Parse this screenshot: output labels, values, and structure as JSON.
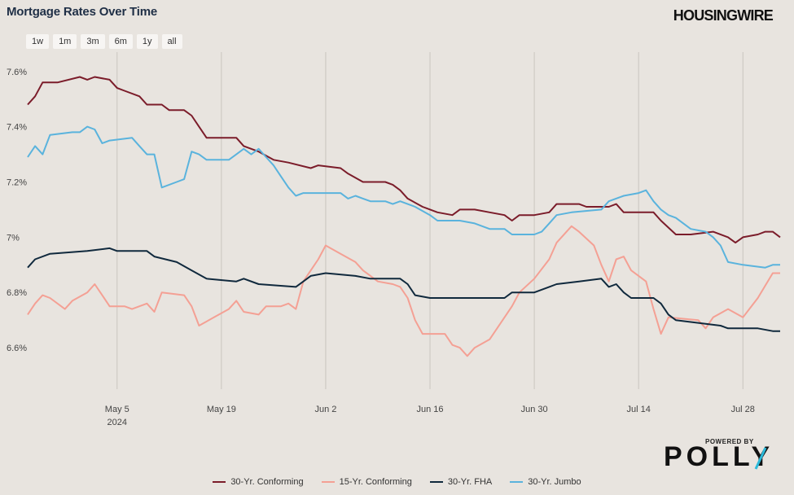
{
  "header": {
    "title": "Mortgage Rates Over Time",
    "brand": "HOUSINGWIRE"
  },
  "range_buttons": [
    "1w",
    "1m",
    "3m",
    "6m",
    "1y",
    "all"
  ],
  "footer": {
    "powered_by": "POWERED BY",
    "logo": "POLLY"
  },
  "colors": {
    "background": "#e8e4df",
    "grid": "#c9c5bf",
    "series": [
      "#7b1c2a",
      "#f4a094",
      "#10293d",
      "#5ab3dd"
    ],
    "polly_accent": "#2bb9d9"
  },
  "chart_data": {
    "type": "line",
    "title": "Mortgage Rates Over Time",
    "xlabel": "",
    "ylabel": "",
    "x_range": [
      "2024-04-23",
      "2024-08-02"
    ],
    "ylim": [
      6.45,
      7.67
    ],
    "y_ticks": [
      6.6,
      6.8,
      7.0,
      7.2,
      7.4,
      7.6
    ],
    "y_tick_labels": [
      "6.6%",
      "6.8%",
      "7%",
      "7.2%",
      "7.4%",
      "7.6%"
    ],
    "x_ticks": [
      {
        "date": "2024-05-05",
        "label": "May 5",
        "sublabel": "2024"
      },
      {
        "date": "2024-05-19",
        "label": "May 19",
        "sublabel": ""
      },
      {
        "date": "2024-06-02",
        "label": "Jun 2",
        "sublabel": ""
      },
      {
        "date": "2024-06-16",
        "label": "Jun 16",
        "sublabel": ""
      },
      {
        "date": "2024-06-30",
        "label": "Jun 30",
        "sublabel": ""
      },
      {
        "date": "2024-07-14",
        "label": "Jul 14",
        "sublabel": ""
      },
      {
        "date": "2024-07-28",
        "label": "Jul 28",
        "sublabel": ""
      }
    ],
    "grid": "vertical",
    "legend_position": "bottom",
    "series": [
      {
        "name": "30-Yr. Conforming",
        "color": "#7b1c2a",
        "points": [
          [
            "2024-04-23",
            7.48
          ],
          [
            "2024-04-24",
            7.51
          ],
          [
            "2024-04-25",
            7.56
          ],
          [
            "2024-04-27",
            7.56
          ],
          [
            "2024-04-30",
            7.58
          ],
          [
            "2024-05-01",
            7.57
          ],
          [
            "2024-05-02",
            7.58
          ],
          [
            "2024-05-04",
            7.57
          ],
          [
            "2024-05-05",
            7.54
          ],
          [
            "2024-05-06",
            7.53
          ],
          [
            "2024-05-08",
            7.51
          ],
          [
            "2024-05-09",
            7.48
          ],
          [
            "2024-05-11",
            7.48
          ],
          [
            "2024-05-12",
            7.46
          ],
          [
            "2024-05-14",
            7.46
          ],
          [
            "2024-05-15",
            7.44
          ],
          [
            "2024-05-16",
            7.4
          ],
          [
            "2024-05-17",
            7.36
          ],
          [
            "2024-05-21",
            7.36
          ],
          [
            "2024-05-22",
            7.33
          ],
          [
            "2024-05-24",
            7.31
          ],
          [
            "2024-05-26",
            7.28
          ],
          [
            "2024-05-28",
            7.27
          ],
          [
            "2024-05-31",
            7.25
          ],
          [
            "2024-06-01",
            7.26
          ],
          [
            "2024-06-04",
            7.25
          ],
          [
            "2024-06-05",
            7.23
          ],
          [
            "2024-06-07",
            7.2
          ],
          [
            "2024-06-10",
            7.2
          ],
          [
            "2024-06-11",
            7.19
          ],
          [
            "2024-06-12",
            7.17
          ],
          [
            "2024-06-13",
            7.14
          ],
          [
            "2024-06-15",
            7.11
          ],
          [
            "2024-06-17",
            7.09
          ],
          [
            "2024-06-19",
            7.08
          ],
          [
            "2024-06-20",
            7.1
          ],
          [
            "2024-06-22",
            7.1
          ],
          [
            "2024-06-24",
            7.09
          ],
          [
            "2024-06-26",
            7.08
          ],
          [
            "2024-06-27",
            7.06
          ],
          [
            "2024-06-28",
            7.08
          ],
          [
            "2024-06-30",
            7.08
          ],
          [
            "2024-07-02",
            7.09
          ],
          [
            "2024-07-03",
            7.12
          ],
          [
            "2024-07-06",
            7.12
          ],
          [
            "2024-07-07",
            7.11
          ],
          [
            "2024-07-10",
            7.11
          ],
          [
            "2024-07-11",
            7.12
          ],
          [
            "2024-07-12",
            7.09
          ],
          [
            "2024-07-16",
            7.09
          ],
          [
            "2024-07-17",
            7.06
          ],
          [
            "2024-07-19",
            7.01
          ],
          [
            "2024-07-21",
            7.01
          ],
          [
            "2024-07-24",
            7.02
          ],
          [
            "2024-07-26",
            7.0
          ],
          [
            "2024-07-27",
            6.98
          ],
          [
            "2024-07-28",
            7.0
          ],
          [
            "2024-07-30",
            7.01
          ],
          [
            "2024-07-31",
            7.02
          ],
          [
            "2024-08-01",
            7.02
          ],
          [
            "2024-08-02",
            7.0
          ]
        ]
      },
      {
        "name": "15-Yr. Conforming",
        "color": "#f4a094",
        "points": [
          [
            "2024-04-23",
            6.72
          ],
          [
            "2024-04-24",
            6.76
          ],
          [
            "2024-04-25",
            6.79
          ],
          [
            "2024-04-26",
            6.78
          ],
          [
            "2024-04-28",
            6.74
          ],
          [
            "2024-04-29",
            6.77
          ],
          [
            "2024-05-01",
            6.8
          ],
          [
            "2024-05-02",
            6.83
          ],
          [
            "2024-05-03",
            6.79
          ],
          [
            "2024-05-04",
            6.75
          ],
          [
            "2024-05-06",
            6.75
          ],
          [
            "2024-05-07",
            6.74
          ],
          [
            "2024-05-09",
            6.76
          ],
          [
            "2024-05-10",
            6.73
          ],
          [
            "2024-05-11",
            6.8
          ],
          [
            "2024-05-14",
            6.79
          ],
          [
            "2024-05-15",
            6.75
          ],
          [
            "2024-05-16",
            6.68
          ],
          [
            "2024-05-18",
            6.71
          ],
          [
            "2024-05-20",
            6.74
          ],
          [
            "2024-05-21",
            6.77
          ],
          [
            "2024-05-22",
            6.73
          ],
          [
            "2024-05-24",
            6.72
          ],
          [
            "2024-05-25",
            6.75
          ],
          [
            "2024-05-27",
            6.75
          ],
          [
            "2024-05-28",
            6.76
          ],
          [
            "2024-05-29",
            6.74
          ],
          [
            "2024-05-30",
            6.84
          ],
          [
            "2024-06-01",
            6.92
          ],
          [
            "2024-06-02",
            6.97
          ],
          [
            "2024-06-04",
            6.94
          ],
          [
            "2024-06-06",
            6.91
          ],
          [
            "2024-06-07",
            6.88
          ],
          [
            "2024-06-09",
            6.84
          ],
          [
            "2024-06-11",
            6.83
          ],
          [
            "2024-06-12",
            6.82
          ],
          [
            "2024-06-13",
            6.78
          ],
          [
            "2024-06-14",
            6.7
          ],
          [
            "2024-06-15",
            6.65
          ],
          [
            "2024-06-18",
            6.65
          ],
          [
            "2024-06-19",
            6.61
          ],
          [
            "2024-06-20",
            6.6
          ],
          [
            "2024-06-21",
            6.57
          ],
          [
            "2024-06-22",
            6.6
          ],
          [
            "2024-06-24",
            6.63
          ],
          [
            "2024-06-25",
            6.67
          ],
          [
            "2024-06-26",
            6.71
          ],
          [
            "2024-06-27",
            6.75
          ],
          [
            "2024-06-28",
            6.8
          ],
          [
            "2024-06-30",
            6.85
          ],
          [
            "2024-07-02",
            6.92
          ],
          [
            "2024-07-03",
            6.98
          ],
          [
            "2024-07-05",
            7.04
          ],
          [
            "2024-07-06",
            7.02
          ],
          [
            "2024-07-08",
            6.97
          ],
          [
            "2024-07-09",
            6.9
          ],
          [
            "2024-07-10",
            6.84
          ],
          [
            "2024-07-11",
            6.92
          ],
          [
            "2024-07-12",
            6.93
          ],
          [
            "2024-07-13",
            6.88
          ],
          [
            "2024-07-15",
            6.84
          ],
          [
            "2024-07-16",
            6.74
          ],
          [
            "2024-07-17",
            6.65
          ],
          [
            "2024-07-18",
            6.71
          ],
          [
            "2024-07-22",
            6.7
          ],
          [
            "2024-07-23",
            6.67
          ],
          [
            "2024-07-24",
            6.71
          ],
          [
            "2024-07-26",
            6.74
          ],
          [
            "2024-07-28",
            6.71
          ],
          [
            "2024-07-30",
            6.78
          ],
          [
            "2024-08-01",
            6.87
          ],
          [
            "2024-08-02",
            6.87
          ]
        ]
      },
      {
        "name": "30-Yr. FHA",
        "color": "#10293d",
        "points": [
          [
            "2024-04-23",
            6.89
          ],
          [
            "2024-04-24",
            6.92
          ],
          [
            "2024-04-26",
            6.94
          ],
          [
            "2024-05-01",
            6.95
          ],
          [
            "2024-05-04",
            6.96
          ],
          [
            "2024-05-05",
            6.95
          ],
          [
            "2024-05-09",
            6.95
          ],
          [
            "2024-05-10",
            6.93
          ],
          [
            "2024-05-13",
            6.91
          ],
          [
            "2024-05-15",
            6.88
          ],
          [
            "2024-05-17",
            6.85
          ],
          [
            "2024-05-21",
            6.84
          ],
          [
            "2024-05-22",
            6.85
          ],
          [
            "2024-05-24",
            6.83
          ],
          [
            "2024-05-29",
            6.82
          ],
          [
            "2024-05-30",
            6.84
          ],
          [
            "2024-05-31",
            6.86
          ],
          [
            "2024-06-02",
            6.87
          ],
          [
            "2024-06-06",
            6.86
          ],
          [
            "2024-06-08",
            6.85
          ],
          [
            "2024-06-12",
            6.85
          ],
          [
            "2024-06-13",
            6.83
          ],
          [
            "2024-06-14",
            6.79
          ],
          [
            "2024-06-16",
            6.78
          ],
          [
            "2024-06-26",
            6.78
          ],
          [
            "2024-06-27",
            6.8
          ],
          [
            "2024-06-30",
            6.8
          ],
          [
            "2024-07-02",
            6.82
          ],
          [
            "2024-07-03",
            6.83
          ],
          [
            "2024-07-06",
            6.84
          ],
          [
            "2024-07-09",
            6.85
          ],
          [
            "2024-07-10",
            6.82
          ],
          [
            "2024-07-11",
            6.83
          ],
          [
            "2024-07-12",
            6.8
          ],
          [
            "2024-07-13",
            6.78
          ],
          [
            "2024-07-16",
            6.78
          ],
          [
            "2024-07-17",
            6.76
          ],
          [
            "2024-07-18",
            6.72
          ],
          [
            "2024-07-19",
            6.7
          ],
          [
            "2024-07-22",
            6.69
          ],
          [
            "2024-07-25",
            6.68
          ],
          [
            "2024-07-26",
            6.67
          ],
          [
            "2024-07-27",
            6.67
          ],
          [
            "2024-07-28",
            6.67
          ],
          [
            "2024-07-30",
            6.67
          ],
          [
            "2024-08-01",
            6.66
          ],
          [
            "2024-08-02",
            6.66
          ]
        ]
      },
      {
        "name": "30-Yr. Jumbo",
        "color": "#5ab3dd",
        "points": [
          [
            "2024-04-23",
            7.29
          ],
          [
            "2024-04-24",
            7.33
          ],
          [
            "2024-04-25",
            7.3
          ],
          [
            "2024-04-26",
            7.37
          ],
          [
            "2024-04-29",
            7.38
          ],
          [
            "2024-04-30",
            7.38
          ],
          [
            "2024-05-01",
            7.4
          ],
          [
            "2024-05-02",
            7.39
          ],
          [
            "2024-05-03",
            7.34
          ],
          [
            "2024-05-04",
            7.35
          ],
          [
            "2024-05-07",
            7.36
          ],
          [
            "2024-05-08",
            7.33
          ],
          [
            "2024-05-09",
            7.3
          ],
          [
            "2024-05-10",
            7.3
          ],
          [
            "2024-05-11",
            7.18
          ],
          [
            "2024-05-13",
            7.2
          ],
          [
            "2024-05-14",
            7.21
          ],
          [
            "2024-05-15",
            7.31
          ],
          [
            "2024-05-16",
            7.3
          ],
          [
            "2024-05-17",
            7.28
          ],
          [
            "2024-05-20",
            7.28
          ],
          [
            "2024-05-21",
            7.3
          ],
          [
            "2024-05-22",
            7.32
          ],
          [
            "2024-05-23",
            7.3
          ],
          [
            "2024-05-24",
            7.32
          ],
          [
            "2024-05-25",
            7.29
          ],
          [
            "2024-05-26",
            7.26
          ],
          [
            "2024-05-27",
            7.22
          ],
          [
            "2024-05-28",
            7.18
          ],
          [
            "2024-05-29",
            7.15
          ],
          [
            "2024-05-30",
            7.16
          ],
          [
            "2024-06-04",
            7.16
          ],
          [
            "2024-06-05",
            7.14
          ],
          [
            "2024-06-06",
            7.15
          ],
          [
            "2024-06-07",
            7.14
          ],
          [
            "2024-06-08",
            7.13
          ],
          [
            "2024-06-10",
            7.13
          ],
          [
            "2024-06-11",
            7.12
          ],
          [
            "2024-06-12",
            7.13
          ],
          [
            "2024-06-14",
            7.11
          ],
          [
            "2024-06-16",
            7.08
          ],
          [
            "2024-06-17",
            7.06
          ],
          [
            "2024-06-20",
            7.06
          ],
          [
            "2024-06-22",
            7.05
          ],
          [
            "2024-06-24",
            7.03
          ],
          [
            "2024-06-26",
            7.03
          ],
          [
            "2024-06-27",
            7.01
          ],
          [
            "2024-06-30",
            7.01
          ],
          [
            "2024-07-01",
            7.02
          ],
          [
            "2024-07-02",
            7.05
          ],
          [
            "2024-07-03",
            7.08
          ],
          [
            "2024-07-05",
            7.09
          ],
          [
            "2024-07-09",
            7.1
          ],
          [
            "2024-07-10",
            7.13
          ],
          [
            "2024-07-12",
            7.15
          ],
          [
            "2024-07-14",
            7.16
          ],
          [
            "2024-07-15",
            7.17
          ],
          [
            "2024-07-16",
            7.13
          ],
          [
            "2024-07-17",
            7.1
          ],
          [
            "2024-07-18",
            7.08
          ],
          [
            "2024-07-19",
            7.07
          ],
          [
            "2024-07-21",
            7.03
          ],
          [
            "2024-07-23",
            7.02
          ],
          [
            "2024-07-24",
            7.0
          ],
          [
            "2024-07-25",
            6.97
          ],
          [
            "2024-07-26",
            6.91
          ],
          [
            "2024-07-28",
            6.9
          ],
          [
            "2024-07-31",
            6.89
          ],
          [
            "2024-08-01",
            6.9
          ],
          [
            "2024-08-02",
            6.9
          ]
        ]
      }
    ]
  }
}
